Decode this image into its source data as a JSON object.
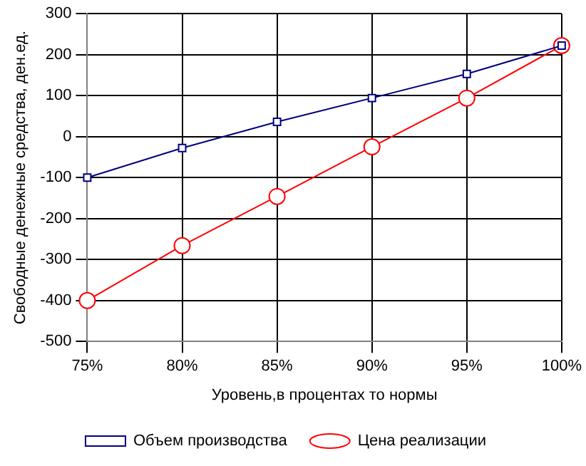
{
  "chart_data": {
    "type": "line",
    "xlabel": "Уровень,в процентах то нормы",
    "ylabel": "Свободные денежные средства, ден.ед.",
    "categories": [
      "75%",
      "80%",
      "85%",
      "90%",
      "95%",
      "100%"
    ],
    "series": [
      {
        "name": "Объем производства",
        "color": "#000080",
        "marker": "square",
        "values": [
          -100,
          -28,
          36,
          94,
          153,
          222
        ]
      },
      {
        "name": "Цена реализации",
        "color": "#ff0000",
        "marker": "circle",
        "values": [
          -400,
          -266,
          -146,
          -25,
          94,
          222
        ]
      }
    ],
    "ylim": [
      -500,
      300
    ],
    "yticks": [
      -500,
      -400,
      -300,
      -200,
      -100,
      0,
      100,
      200,
      300
    ],
    "grid": true,
    "legend": "bottom",
    "line_style": "solid"
  }
}
